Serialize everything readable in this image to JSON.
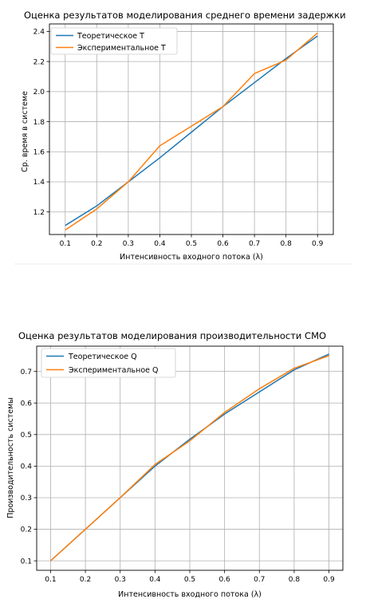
{
  "chart_data": [
    {
      "type": "line",
      "title": "Оценка результатов моделирования среднего времени задержки",
      "xlabel": "Интенсивность входного потока (λ)",
      "ylabel": "Ср. время в системе",
      "x": [
        0.1,
        0.2,
        0.3,
        0.4,
        0.5,
        0.6,
        0.7,
        0.8,
        0.9
      ],
      "xticks": [
        "0.1",
        "0.2",
        "0.3",
        "0.4",
        "0.5",
        "0.6",
        "0.7",
        "0.8",
        "0.9"
      ],
      "yticks": [
        "1.2",
        "1.4",
        "1.6",
        "1.8",
        "2.0",
        "2.2",
        "2.4"
      ],
      "ytick_values": [
        1.2,
        1.4,
        1.6,
        1.8,
        2.0,
        2.2,
        2.4
      ],
      "xlim": [
        0.05,
        0.95
      ],
      "ylim": [
        1.05,
        2.45
      ],
      "grid": true,
      "legend_position": "upper-left",
      "series": [
        {
          "name": "Теоретическое T",
          "color": "#1f77b4",
          "values": [
            1.11,
            1.24,
            1.4,
            1.56,
            1.73,
            1.9,
            2.06,
            2.22,
            2.37
          ]
        },
        {
          "name": "Экспериментальное T",
          "color": "#ff7f0e",
          "values": [
            1.08,
            1.22,
            1.4,
            1.64,
            1.77,
            1.9,
            2.12,
            2.21,
            2.39
          ]
        }
      ]
    },
    {
      "type": "line",
      "title": "Оценка результатов моделирования производительности СМО",
      "xlabel": "Интенсивность входного потока (λ)",
      "ylabel": "Производительность системы",
      "x": [
        0.1,
        0.2,
        0.3,
        0.4,
        0.5,
        0.6,
        0.7,
        0.8,
        0.9
      ],
      "xticks": [
        "0.1",
        "0.2",
        "0.3",
        "0.4",
        "0.5",
        "0.6",
        "0.7",
        "0.8",
        "0.9"
      ],
      "yticks": [
        "0.1",
        "0.2",
        "0.3",
        "0.4",
        "0.5",
        "0.6",
        "0.7"
      ],
      "ytick_values": [
        0.1,
        0.2,
        0.3,
        0.4,
        0.5,
        0.6,
        0.7
      ],
      "xlim": [
        0.06,
        0.94
      ],
      "ylim": [
        0.07,
        0.78
      ],
      "grid": true,
      "legend_position": "upper-left",
      "series": [
        {
          "name": "Теоретическое Q",
          "color": "#1f77b4",
          "values": [
            0.1,
            0.2,
            0.3,
            0.4,
            0.485,
            0.565,
            0.635,
            0.705,
            0.755
          ]
        },
        {
          "name": "Экспериментальное Q",
          "color": "#ff7f0e",
          "values": [
            0.1,
            0.2,
            0.3,
            0.405,
            0.48,
            0.57,
            0.645,
            0.71,
            0.75
          ]
        }
      ]
    }
  ]
}
